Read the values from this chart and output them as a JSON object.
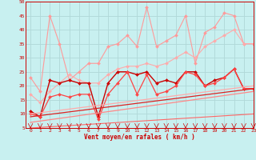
{
  "xlabel": "Vent moyen/en rafales ( km/h )",
  "background_color": "#c8f0f0",
  "grid_color": "#b0d8d8",
  "xlim": [
    -0.5,
    23
  ],
  "ylim": [
    5,
    50
  ],
  "yticks": [
    5,
    10,
    15,
    20,
    25,
    30,
    35,
    40,
    45,
    50
  ],
  "xticks": [
    0,
    1,
    2,
    3,
    4,
    5,
    6,
    7,
    8,
    9,
    10,
    11,
    12,
    13,
    14,
    15,
    16,
    17,
    18,
    19,
    20,
    21,
    22,
    23
  ],
  "series": [
    {
      "x": [
        0,
        1,
        2,
        3,
        4,
        5,
        6,
        7,
        8,
        9,
        10,
        11,
        12,
        13,
        14,
        15,
        16,
        17,
        18,
        19,
        20,
        21,
        22,
        23
      ],
      "y": [
        23,
        18,
        45,
        35,
        22,
        25,
        28,
        28,
        34,
        35,
        38,
        34,
        48,
        34,
        36,
        38,
        45,
        28,
        39,
        41,
        46,
        45,
        35,
        35
      ],
      "color": "#ff9999",
      "lw": 0.8,
      "marker": "D",
      "ms": 2.0
    },
    {
      "x": [
        0,
        1,
        2,
        3,
        4,
        5,
        6,
        7,
        8,
        9,
        10,
        11,
        12,
        13,
        14,
        15,
        16,
        17,
        18,
        19,
        20,
        21,
        22,
        23
      ],
      "y": [
        17,
        14,
        18,
        21,
        24,
        22,
        21,
        21,
        24,
        26,
        27,
        27,
        28,
        27,
        28,
        30,
        32,
        30,
        34,
        36,
        38,
        40,
        35,
        35
      ],
      "color": "#ffaaaa",
      "lw": 0.8,
      "marker": "D",
      "ms": 2.0
    },
    {
      "x": [
        0,
        1,
        2,
        3,
        4,
        5,
        6,
        7,
        8,
        9,
        10,
        11,
        12,
        13,
        14,
        15,
        16,
        17,
        18,
        19,
        20,
        21,
        22,
        23
      ],
      "y": [
        11,
        9,
        22,
        21,
        22,
        21,
        21,
        9,
        21,
        25,
        25,
        24,
        25,
        21,
        22,
        21,
        25,
        25,
        20,
        22,
        23,
        26,
        19,
        19
      ],
      "color": "#cc0000",
      "lw": 1.0,
      "marker": "D",
      "ms": 2.0
    },
    {
      "x": [
        0,
        1,
        2,
        3,
        4,
        5,
        6,
        7,
        8,
        9,
        10,
        11,
        12,
        13,
        14,
        15,
        16,
        17,
        18,
        19,
        20,
        21,
        22,
        23
      ],
      "y": [
        10,
        9,
        16,
        17,
        16,
        17,
        17,
        8,
        17,
        21,
        25,
        17,
        24,
        17,
        18,
        20,
        25,
        24,
        20,
        21,
        23,
        26,
        19,
        19
      ],
      "color": "#ff4444",
      "lw": 0.9,
      "marker": "D",
      "ms": 2.0
    },
    {
      "x": [
        0,
        23
      ],
      "y": [
        10,
        20
      ],
      "color": "#ffaaaa",
      "lw": 0.9,
      "marker": null,
      "ms": 0
    },
    {
      "x": [
        0,
        23
      ],
      "y": [
        7,
        18
      ],
      "color": "#ff8888",
      "lw": 0.9,
      "marker": null,
      "ms": 0
    },
    {
      "x": [
        0,
        23
      ],
      "y": [
        9,
        19
      ],
      "color": "#dd2222",
      "lw": 0.9,
      "marker": null,
      "ms": 0
    },
    {
      "x": [
        0,
        23
      ],
      "y": [
        5,
        10
      ],
      "color": "#ff6666",
      "lw": 0.8,
      "marker": null,
      "ms": 0
    }
  ]
}
